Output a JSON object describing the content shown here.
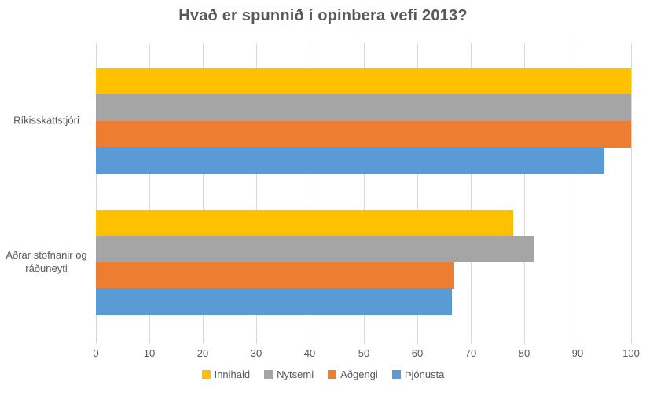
{
  "chart_data": {
    "type": "bar",
    "orientation": "horizontal",
    "title": "Hvað er spunnið í opinbera vefi 2013?",
    "categories": [
      "Ríkisskattstjóri",
      "Aðrar stofnanir og ráðuneyti"
    ],
    "series": [
      {
        "name": "Innihald",
        "color": "#FFC000",
        "values": [
          100,
          78
        ]
      },
      {
        "name": "Nytsemi",
        "color": "#A5A5A5",
        "values": [
          100,
          82
        ]
      },
      {
        "name": "Aðgengi",
        "color": "#ED7D31",
        "values": [
          100,
          67
        ]
      },
      {
        "name": "Þjónusta",
        "color": "#5B9BD5",
        "values": [
          95,
          66.5
        ]
      }
    ],
    "xlim": [
      0,
      100
    ],
    "x_ticks": [
      0,
      10,
      20,
      30,
      40,
      50,
      60,
      70,
      80,
      90,
      100
    ],
    "grid": true,
    "legend_position": "bottom"
  },
  "style_colors": {
    "title_text": "#595959",
    "axis_text": "#595959",
    "gridline": "#d9d9d9",
    "background": "#ffffff"
  }
}
